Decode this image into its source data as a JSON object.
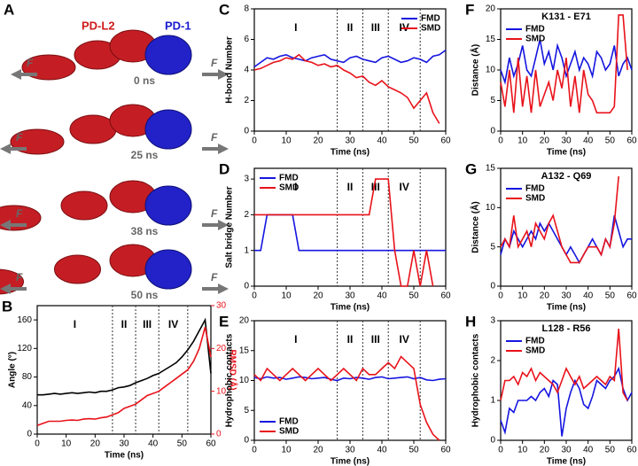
{
  "diagram": {
    "panel": "A",
    "ligand": "PD-L2",
    "receptor": "PD-1",
    "force": "F",
    "frames": [
      "0 ns",
      "25 ns",
      "38 ns",
      "50 ns"
    ]
  },
  "chart_data": [
    {
      "type": "line",
      "panel": "B",
      "xlabel": "Time (ns)",
      "ylabel": "Angle (°)",
      "y2label": "RMSD (Å)",
      "x": [
        0,
        2,
        4,
        6,
        8,
        10,
        12,
        14,
        16,
        18,
        20,
        22,
        24,
        26,
        28,
        30,
        32,
        34,
        36,
        38,
        40,
        42,
        44,
        46,
        48,
        50,
        52,
        54,
        56,
        58,
        60
      ],
      "xlim": [
        0,
        60
      ],
      "xticks": [
        0,
        10,
        20,
        30,
        40,
        50,
        60
      ],
      "ylim": [
        0,
        180
      ],
      "yticks": [
        0,
        40,
        80,
        120,
        160
      ],
      "y2lim": [
        0,
        30
      ],
      "y2ticks": [
        0,
        10,
        20,
        30
      ],
      "phase_lines": [
        26,
        34,
        42,
        52
      ],
      "phases": [
        "I",
        "II",
        "III",
        "IV"
      ],
      "series": [
        {
          "color": "#000000",
          "values": [
            55,
            55,
            56,
            57,
            56,
            57,
            58,
            57,
            58,
            59,
            58,
            60,
            60,
            62,
            65,
            66,
            68,
            72,
            75,
            78,
            82,
            85,
            90,
            95,
            100,
            108,
            118,
            130,
            145,
            160,
            85
          ]
        },
        {
          "color": "#e8121a",
          "axis": "y2",
          "values": [
            2,
            2.5,
            3,
            3,
            3,
            3.2,
            3.3,
            3.2,
            3.5,
            3.6,
            3.5,
            3.8,
            4,
            4.5,
            5,
            6,
            6.5,
            7,
            8,
            9,
            9.5,
            10,
            11,
            12,
            13,
            14,
            15,
            17,
            20,
            25,
            18
          ]
        }
      ]
    },
    {
      "type": "line",
      "panel": "C",
      "xlabel": "Time (ns)",
      "ylabel": "H-bond Number",
      "legend": "upper right",
      "x": [
        0,
        2,
        4,
        6,
        8,
        10,
        12,
        14,
        16,
        18,
        20,
        22,
        24,
        26,
        28,
        30,
        32,
        34,
        36,
        38,
        40,
        42,
        44,
        46,
        48,
        50,
        52,
        54,
        56,
        58,
        60
      ],
      "xlim": [
        0,
        60
      ],
      "xticks": [
        0,
        10,
        20,
        30,
        40,
        50,
        60
      ],
      "ylim": [
        0,
        8
      ],
      "yticks": [
        0,
        2,
        4,
        6,
        8
      ],
      "phase_lines": [
        26,
        34,
        42,
        52
      ],
      "phases": [
        "I",
        "II",
        "III",
        "IV"
      ],
      "series": [
        {
          "name": "FMD",
          "color": "#1515e0",
          "values": [
            4.2,
            4.5,
            4.8,
            4.7,
            4.9,
            5,
            4.8,
            4.7,
            4.6,
            4.8,
            4.9,
            5,
            4.7,
            4.6,
            4.5,
            4.8,
            4.9,
            4.7,
            4.6,
            4.5,
            4.8,
            4.9,
            4.7,
            4.5,
            4.6,
            4.8,
            4.7,
            4.5,
            4.9,
            5,
            5.3
          ]
        },
        {
          "name": "SMD",
          "color": "#e8121a",
          "values": [
            4,
            4.1,
            4.3,
            4.5,
            4.6,
            4.8,
            4.7,
            5,
            4.6,
            4.5,
            4.3,
            4.4,
            4.2,
            4.3,
            4,
            3.8,
            3.5,
            3.6,
            3.2,
            3,
            3.3,
            2.9,
            2.7,
            2.5,
            2.2,
            1.5,
            2,
            2.5,
            1.2,
            0.5,
            null
          ]
        }
      ]
    },
    {
      "type": "line",
      "panel": "D",
      "xlabel": "Time (ns)",
      "ylabel": "Salt bridge Number",
      "legend": "upper left",
      "x": [
        0,
        2,
        4,
        6,
        8,
        10,
        12,
        14,
        16,
        18,
        20,
        22,
        24,
        26,
        28,
        30,
        32,
        34,
        36,
        38,
        40,
        42,
        44,
        46,
        48,
        50,
        52,
        54,
        56,
        58,
        60
      ],
      "xlim": [
        0,
        60
      ],
      "xticks": [
        0,
        10,
        20,
        30,
        40,
        50,
        60
      ],
      "ylim": [
        0,
        3.3
      ],
      "yticks": [
        0,
        1,
        2,
        3
      ],
      "phase_lines": [
        26,
        34,
        42,
        52
      ],
      "phases": [
        "I",
        "II",
        "III",
        "IV"
      ],
      "series": [
        {
          "name": "FMD",
          "color": "#1515e0",
          "values": [
            1,
            1,
            2,
            2,
            2,
            2,
            2,
            1,
            1,
            1,
            1,
            1,
            1,
            1,
            1,
            1,
            1,
            1,
            1,
            1,
            1,
            1,
            1,
            1,
            1,
            1,
            1,
            1,
            1,
            1,
            1
          ]
        },
        {
          "name": "SMD",
          "color": "#e8121a",
          "values": [
            2,
            2,
            2,
            2,
            2,
            2,
            2,
            2,
            2,
            2,
            2,
            2,
            2,
            2,
            2,
            2,
            2,
            2,
            2,
            3,
            3,
            3,
            1,
            0,
            0,
            1,
            0,
            1,
            0,
            null,
            null
          ]
        }
      ]
    },
    {
      "type": "line",
      "panel": "E",
      "xlabel": "Time (ns)",
      "ylabel": "Hydrophobic contacts",
      "legend": "lower left",
      "x": [
        0,
        2,
        4,
        6,
        8,
        10,
        12,
        14,
        16,
        18,
        20,
        22,
        24,
        26,
        28,
        30,
        32,
        34,
        36,
        38,
        40,
        42,
        44,
        46,
        48,
        50,
        52,
        54,
        56,
        58,
        60
      ],
      "xlim": [
        0,
        60
      ],
      "xticks": [
        0,
        10,
        20,
        30,
        40,
        50,
        60
      ],
      "ylim": [
        0,
        20
      ],
      "yticks": [
        0,
        5,
        10,
        15,
        20
      ],
      "phase_lines": [
        26,
        34,
        42,
        52
      ],
      "phases": [
        "I",
        "II",
        "III",
        "IV"
      ],
      "series": [
        {
          "name": "FMD",
          "color": "#1515e0",
          "values": [
            10.5,
            10.3,
            10.6,
            10.4,
            10.5,
            10.2,
            10.4,
            10.6,
            10.5,
            10.3,
            10.4,
            10.5,
            10.2,
            10,
            10.4,
            10.3,
            10.5,
            10.4,
            10.2,
            10.5,
            10.6,
            10.3,
            10.4,
            10.5,
            10.6,
            10.3,
            10.5,
            10.1,
            10,
            10.2,
            10.3
          ]
        },
        {
          "name": "SMD",
          "color": "#e8121a",
          "values": [
            11,
            10,
            12,
            11,
            10,
            11,
            12,
            11,
            10,
            11,
            12,
            11,
            10,
            11,
            12,
            11,
            10,
            12,
            11,
            11,
            12,
            13,
            12,
            14,
            13,
            12,
            6,
            3,
            1,
            0,
            null
          ]
        }
      ]
    },
    {
      "type": "line",
      "panel": "F",
      "title": "K131 - E71",
      "xlabel": "Time (ns)",
      "ylabel": "Distance (Å)",
      "legend": "upper left",
      "x": [
        0,
        2,
        4,
        6,
        8,
        10,
        12,
        14,
        16,
        18,
        20,
        22,
        24,
        26,
        28,
        30,
        32,
        34,
        36,
        38,
        40,
        42,
        44,
        46,
        48,
        50,
        52,
        54,
        56,
        58,
        60
      ],
      "xlim": [
        0,
        60
      ],
      "xticks": [
        0,
        10,
        20,
        30,
        40,
        50,
        60
      ],
      "ylim": [
        0,
        20
      ],
      "yticks": [
        0,
        5,
        10,
        15,
        20
      ],
      "series": [
        {
          "name": "FMD",
          "color": "#1515e0",
          "values": [
            10,
            8,
            12,
            9,
            11,
            14,
            10,
            9,
            12,
            15,
            11,
            13,
            10,
            14,
            12,
            9,
            11,
            13,
            10,
            12,
            11,
            9,
            13,
            12,
            10,
            11,
            14,
            9,
            11,
            12,
            10
          ]
        },
        {
          "name": "SMD",
          "color": "#e8121a",
          "values": [
            8,
            4,
            10,
            3,
            12,
            4,
            9,
            3,
            10,
            4,
            6,
            8,
            5,
            10,
            7,
            12,
            4,
            9,
            3,
            10,
            6,
            5,
            3,
            3,
            3,
            3,
            4,
            19,
            19,
            10,
            null
          ]
        }
      ]
    },
    {
      "type": "line",
      "panel": "G",
      "title": "A132 - Q69",
      "xlabel": "Time (ns)",
      "ylabel": "Distance (Å)",
      "legend": "upper left",
      "x": [
        0,
        2,
        4,
        6,
        8,
        10,
        12,
        14,
        16,
        18,
        20,
        22,
        24,
        26,
        28,
        30,
        32,
        34,
        36,
        38,
        40,
        42,
        44,
        46,
        48,
        50,
        52,
        54,
        56,
        58,
        60
      ],
      "xlim": [
        0,
        60
      ],
      "xticks": [
        0,
        10,
        20,
        30,
        40,
        50,
        60
      ],
      "ylim": [
        0,
        15
      ],
      "yticks": [
        0,
        5,
        10,
        15
      ],
      "series": [
        {
          "name": "FMD",
          "color": "#1515e0",
          "values": [
            4,
            6,
            5,
            7,
            6,
            5,
            6,
            7,
            6,
            8,
            7,
            8,
            7,
            6,
            5,
            4,
            5,
            4,
            3,
            4,
            5,
            6,
            5,
            4,
            6,
            5,
            9,
            7,
            5,
            6,
            6
          ]
        },
        {
          "name": "SMD",
          "color": "#e8121a",
          "values": [
            5,
            6,
            5,
            9,
            5,
            6,
            7,
            5,
            8,
            7,
            6,
            8,
            9,
            7,
            5,
            4,
            3,
            3,
            3,
            4,
            5,
            5,
            5,
            4,
            6,
            5,
            8,
            14,
            null,
            null,
            null
          ]
        }
      ]
    },
    {
      "type": "line",
      "panel": "H",
      "title": "L128 - R56",
      "xlabel": "Time (ns)",
      "ylabel": "Hydrophobic contacts",
      "legend": "upper left",
      "x": [
        0,
        2,
        4,
        6,
        8,
        10,
        12,
        14,
        16,
        18,
        20,
        22,
        24,
        26,
        28,
        30,
        32,
        34,
        36,
        38,
        40,
        42,
        44,
        46,
        48,
        50,
        52,
        54,
        56,
        58,
        60
      ],
      "xlim": [
        0,
        60
      ],
      "xticks": [
        0,
        10,
        20,
        30,
        40,
        50,
        60
      ],
      "ylim": [
        0,
        3
      ],
      "yticks": [
        0,
        1,
        2,
        3
      ],
      "series": [
        {
          "name": "FMD",
          "color": "#1515e0",
          "values": [
            0.5,
            0.2,
            0.8,
            0.7,
            1,
            1,
            1,
            1.1,
            1,
            1.2,
            1.3,
            1.1,
            1.5,
            1.4,
            0.1,
            0.8,
            1.2,
            1.5,
            1.3,
            0.9,
            0.8,
            1.1,
            1.5,
            1.4,
            1.3,
            1.5,
            1.6,
            1.8,
            1.3,
            1,
            1.2
          ]
        },
        {
          "name": "SMD",
          "color": "#e8121a",
          "values": [
            1,
            1.5,
            1.5,
            1.6,
            1.4,
            1.7,
            1.6,
            1.8,
            1.5,
            1.7,
            1.6,
            1.5,
            1.4,
            1.2,
            1.5,
            1.8,
            1.6,
            1.4,
            1.6,
            1.3,
            1.4,
            1.5,
            1.6,
            1.5,
            1.4,
            1.6,
            1.5,
            2.8,
            1.2,
            1,
            null
          ]
        }
      ]
    }
  ]
}
